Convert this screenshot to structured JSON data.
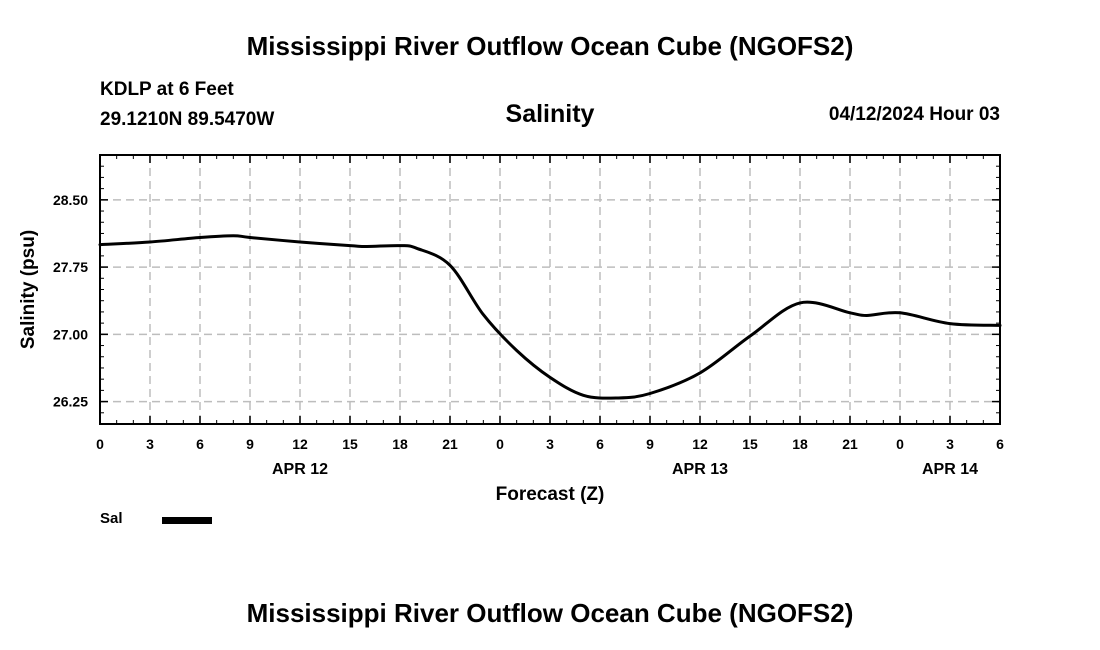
{
  "header": {
    "title": "Mississippi River Outflow Ocean Cube (NGOFS2)",
    "station_name": "KDLP at 6 Feet",
    "coords": "29.1210N  89.5470W",
    "datetime": "04/12/2024 Hour 03"
  },
  "footer": {
    "title": "Mississippi River Outflow Ocean Cube (NGOFS2)"
  },
  "chart_data": {
    "type": "line",
    "title": "Salinity",
    "xlabel": "Forecast (Z)",
    "ylabel": "Salinity (psu)",
    "xlim": [
      0,
      54
    ],
    "ylim": [
      26.0,
      29.0
    ],
    "grid": true,
    "y_ticks": [
      26.25,
      27.0,
      27.75,
      28.5
    ],
    "y_tick_labels": [
      "26.25",
      "27.00",
      "27.75",
      "28.50"
    ],
    "x_ticks": [
      0,
      3,
      6,
      9,
      12,
      15,
      18,
      21,
      24,
      27,
      30,
      33,
      36,
      39,
      42,
      45,
      48,
      51,
      54
    ],
    "x_tick_labels": [
      "0",
      "3",
      "6",
      "9",
      "12",
      "15",
      "18",
      "21",
      "0",
      "3",
      "6",
      "9",
      "12",
      "15",
      "18",
      "21",
      "0",
      "3",
      "6"
    ],
    "date_labels": [
      {
        "label": "APR 12",
        "hour": 12
      },
      {
        "label": "APR 13",
        "hour": 36
      },
      {
        "label": "APR 14",
        "hour": 51
      }
    ],
    "series": [
      {
        "name": "Sal",
        "color": "#000000",
        "x": [
          0,
          3,
          6,
          8,
          9,
          12,
          15,
          16,
          18,
          19,
          21,
          23,
          25,
          27,
          29,
          31,
          33,
          36,
          39,
          42,
          45,
          46,
          48,
          51,
          54
        ],
        "y": [
          28.0,
          28.03,
          28.08,
          28.1,
          28.08,
          28.03,
          27.99,
          27.98,
          27.99,
          27.96,
          27.77,
          27.22,
          26.82,
          26.52,
          26.32,
          26.29,
          26.34,
          26.57,
          26.98,
          27.35,
          27.24,
          27.21,
          27.24,
          27.12,
          27.1
        ]
      }
    ]
  },
  "legend": {
    "label": "Sal",
    "color": "#000000"
  }
}
